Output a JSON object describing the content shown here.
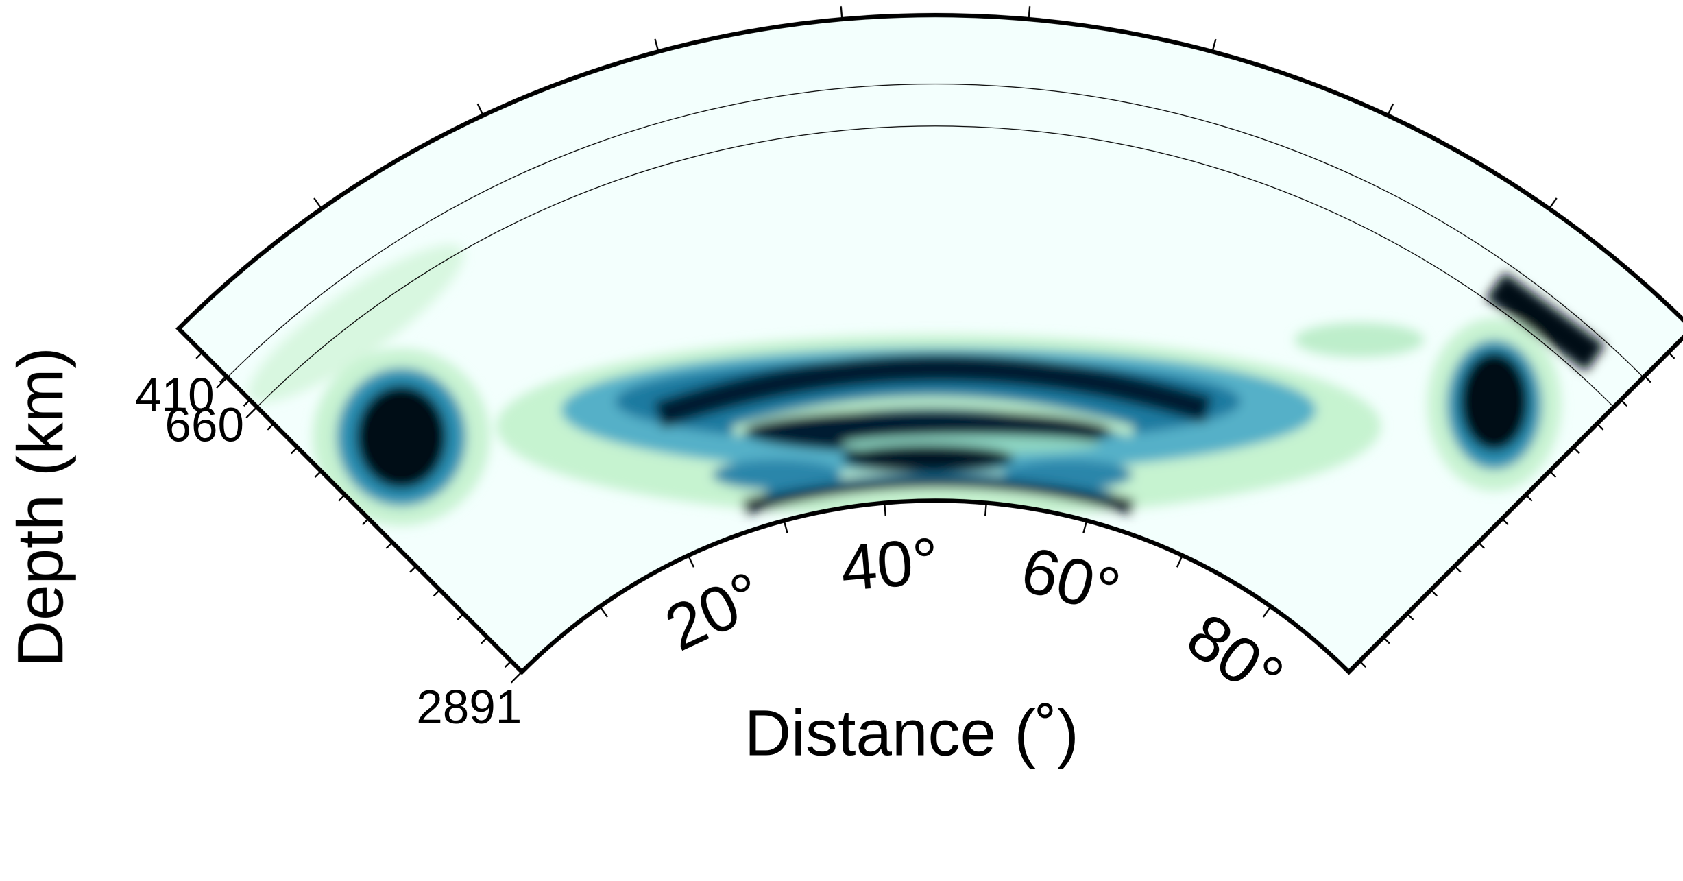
{
  "chart_data": {
    "type": "polar-section",
    "xlabel": "Distance (˚)",
    "ylabel": "Depth (km)",
    "xlim": [
      0,
      90
    ],
    "xticks": [
      {
        "value": 20,
        "label": "20°"
      },
      {
        "value": 40,
        "label": "40°"
      },
      {
        "value": 60,
        "label": "60°"
      },
      {
        "value": 80,
        "label": "80°"
      }
    ],
    "xminor_ticks": [
      10,
      30,
      50,
      70
    ],
    "ylim": [
      0,
      2891
    ],
    "yticks": [
      410,
      660,
      2891
    ],
    "yminor_ticks": [
      200,
      400,
      600,
      800,
      1000,
      1200,
      1400,
      1600,
      1800,
      2000,
      2200,
      2400,
      2600,
      2800
    ],
    "discontinuities": [
      410,
      660
    ]
  }
}
